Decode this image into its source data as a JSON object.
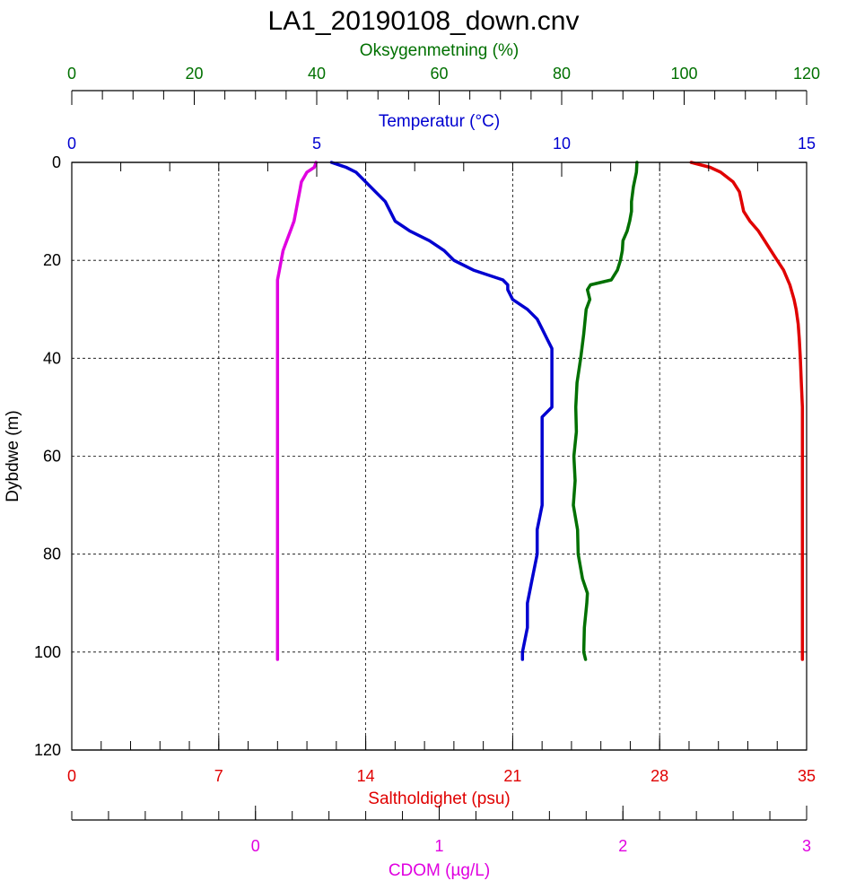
{
  "chart_data": {
    "type": "line",
    "title": "LA1_20190108_down.cnv",
    "grid": true,
    "y_axis": {
      "label": "Dybdwe (m)",
      "range": [
        0,
        120
      ],
      "inverted": true,
      "ticks": [
        "0",
        "20",
        "40",
        "60",
        "80",
        "100",
        "120"
      ],
      "tick_values": [
        0,
        20,
        40,
        60,
        80,
        100,
        120
      ]
    },
    "x_axes": [
      {
        "id": "oxygen",
        "label": "Oksygenmetning (%)",
        "position": "top-1",
        "color": "#007000",
        "range": [
          0,
          120
        ],
        "ticks": [
          "0",
          "20",
          "40",
          "60",
          "80",
          "100",
          "120"
        ],
        "tick_values": [
          0,
          20,
          40,
          60,
          80,
          100,
          120
        ]
      },
      {
        "id": "temperature",
        "label": "Temperatur (°C)",
        "position": "top-2",
        "color": "#0000d0",
        "range": [
          0,
          15
        ],
        "ticks": [
          "0",
          "5",
          "10",
          "15"
        ],
        "tick_values": [
          0,
          5,
          10,
          15
        ]
      },
      {
        "id": "salinity",
        "label": "Saltholdighet (psu)",
        "position": "bottom-1",
        "color": "#e00000",
        "range": [
          0,
          35
        ],
        "ticks": [
          "0",
          "7",
          "14",
          "21",
          "28",
          "35"
        ],
        "tick_values": [
          0,
          7,
          14,
          21,
          28,
          35
        ]
      },
      {
        "id": "cdom",
        "label": "CDOM (µg/L)",
        "position": "bottom-2",
        "color": "#e000e0",
        "range": [
          -1,
          3
        ],
        "ticks": [
          "0",
          "1",
          "2",
          "3"
        ],
        "tick_values": [
          0,
          1,
          2,
          3
        ]
      }
    ],
    "series": [
      {
        "axis": "temperature",
        "color": "#0000d0",
        "depth": [
          0,
          1,
          2,
          4,
          6,
          8,
          10,
          12,
          14,
          16,
          18,
          20,
          22,
          24,
          25,
          26,
          28,
          30,
          32,
          34,
          36,
          38,
          40,
          45,
          50,
          52,
          55,
          60,
          65,
          70,
          75,
          80,
          85,
          90,
          95,
          100,
          101.5
        ],
        "values": [
          5.3,
          5.6,
          5.8,
          6.0,
          6.2,
          6.4,
          6.5,
          6.6,
          6.9,
          7.3,
          7.6,
          7.8,
          8.2,
          8.8,
          8.9,
          8.9,
          9.0,
          9.3,
          9.5,
          9.6,
          9.7,
          9.8,
          9.8,
          9.8,
          9.8,
          9.6,
          9.6,
          9.6,
          9.6,
          9.6,
          9.5,
          9.5,
          9.4,
          9.3,
          9.3,
          9.2,
          9.2
        ]
      },
      {
        "axis": "oxygen",
        "color": "#007000",
        "depth": [
          0,
          2,
          5,
          8,
          10,
          12,
          14,
          16,
          18,
          20,
          22,
          24,
          25,
          26,
          28,
          30,
          35,
          40,
          45,
          50,
          55,
          60,
          65,
          70,
          75,
          80,
          85,
          88,
          90,
          95,
          100,
          101.5
        ],
        "values": [
          92.3,
          92.2,
          91.7,
          91.4,
          91.4,
          91.1,
          90.7,
          90.0,
          89.9,
          89.6,
          89.1,
          88.1,
          84.7,
          84.2,
          84.6,
          84.0,
          83.6,
          83.1,
          82.5,
          82.3,
          82.4,
          82.0,
          82.2,
          81.9,
          82.6,
          82.7,
          83.4,
          84.2,
          84.1,
          83.7,
          83.6,
          83.9
        ]
      },
      {
        "axis": "salinity",
        "color": "#e00000",
        "depth": [
          0,
          1,
          2,
          4,
          6,
          8,
          10,
          12,
          14,
          16,
          18,
          20,
          22,
          25,
          28,
          30,
          33,
          36,
          40,
          45,
          50,
          55,
          60,
          70,
          80,
          90,
          100,
          101.5
        ],
        "values": [
          29.5,
          30.4,
          30.9,
          31.5,
          31.8,
          31.9,
          32.0,
          32.3,
          32.7,
          33.0,
          33.3,
          33.6,
          33.9,
          34.2,
          34.4,
          34.5,
          34.6,
          34.65,
          34.7,
          34.75,
          34.8,
          34.8,
          34.8,
          34.8,
          34.8,
          34.8,
          34.8,
          34.8
        ]
      },
      {
        "axis": "cdom",
        "color": "#e000e0",
        "depth": [
          0,
          1,
          2,
          4,
          6,
          8,
          10,
          12,
          14,
          16,
          18,
          20,
          22,
          24,
          26,
          30,
          40,
          60,
          80,
          100,
          101.5
        ],
        "values": [
          0.33,
          0.32,
          0.28,
          0.25,
          0.24,
          0.23,
          0.22,
          0.21,
          0.19,
          0.17,
          0.15,
          0.14,
          0.13,
          0.12,
          0.12,
          0.12,
          0.12,
          0.12,
          0.12,
          0.12,
          0.12
        ]
      }
    ]
  }
}
